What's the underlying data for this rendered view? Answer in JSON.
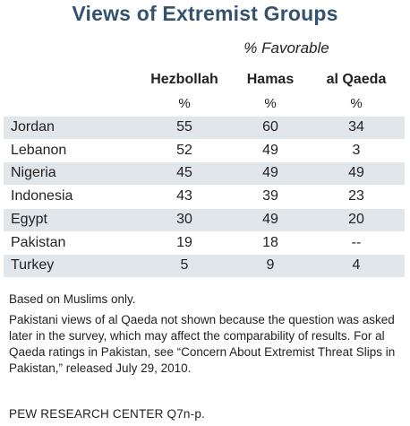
{
  "title": "Views of Extremist Groups",
  "subtitle": "% Favorable",
  "columns": [
    "Hezbollah",
    "Hamas",
    "al Qaeda"
  ],
  "unit": "%",
  "chart_data": {
    "type": "table",
    "title": "Views of Extremist Groups",
    "subtitle": "% Favorable",
    "columns": [
      "Hezbollah",
      "Hamas",
      "al Qaeda"
    ],
    "rows": [
      {
        "label": "Jordan",
        "values": [
          "55",
          "60",
          "34"
        ]
      },
      {
        "label": "Lebanon",
        "values": [
          "52",
          "49",
          "3"
        ]
      },
      {
        "label": "Nigeria",
        "values": [
          "45",
          "49",
          "49"
        ]
      },
      {
        "label": "Indonesia",
        "values": [
          "43",
          "39",
          "23"
        ]
      },
      {
        "label": "Egypt",
        "values": [
          "30",
          "49",
          "20"
        ]
      },
      {
        "label": "Pakistan",
        "values": [
          "19",
          "18",
          "--"
        ]
      },
      {
        "label": "Turkey",
        "values": [
          "5",
          "9",
          "4"
        ]
      }
    ]
  },
  "notes": {
    "line1": "Based on Muslims only.",
    "line2": "Pakistani views of al Qaeda not shown because the question was asked later in the survey, which may affect the comparability of results. For al Qaeda ratings in Pakistan, see “Concern About Extremist Threat Slips in Pakistan,” released July 29, 2010."
  },
  "source": "PEW RESEARCH CENTER Q7n-p.",
  "colors": {
    "title": "#34526f",
    "row_shade": "#e1e6eb",
    "text": "#222222"
  }
}
